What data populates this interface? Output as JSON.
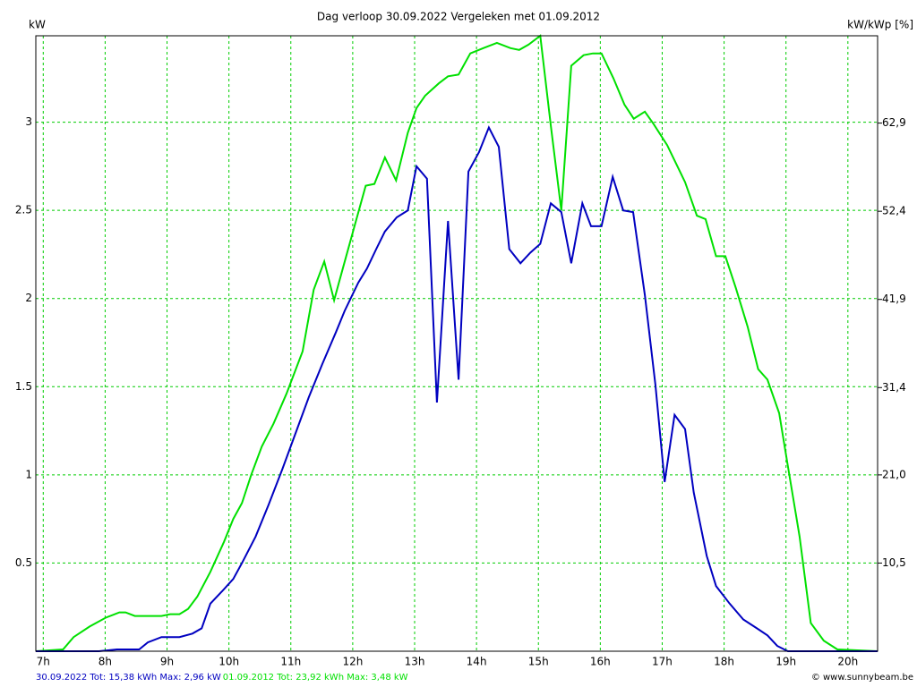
{
  "chart_data": {
    "type": "line",
    "title": "Dag  verloop 30.09.2022   Vergeleken met 01.09.2012",
    "y_label": "kW",
    "y2_label": "kW/kWp [%]",
    "credit": "© www.sunnybeam.be",
    "xlim": [
      6.88,
      20.48
    ],
    "xticks": [
      {
        "value": 7,
        "label": "7h"
      },
      {
        "value": 8,
        "label": "8h"
      },
      {
        "value": 9,
        "label": "9h"
      },
      {
        "value": 10,
        "label": "10h"
      },
      {
        "value": 11,
        "label": "11h"
      },
      {
        "value": 12,
        "label": "12h"
      },
      {
        "value": 13,
        "label": "13h"
      },
      {
        "value": 14,
        "label": "14h"
      },
      {
        "value": 15,
        "label": "15h"
      },
      {
        "value": 16,
        "label": "16h"
      },
      {
        "value": 17,
        "label": "17h"
      },
      {
        "value": 18,
        "label": "18h"
      },
      {
        "value": 19,
        "label": "19h"
      },
      {
        "value": 20,
        "label": "20h"
      }
    ],
    "ylim": [
      0,
      3.49
    ],
    "yticks": [
      0.5,
      1,
      1.5,
      2,
      2.5,
      3
    ],
    "y2lim": [
      0,
      73.3
    ],
    "y2ticks": [
      {
        "value": 10.5,
        "label": "10,5"
      },
      {
        "value": 21,
        "label": "21,0"
      },
      {
        "value": 31.4,
        "label": "31,4"
      },
      {
        "value": 41.9,
        "label": "41,9"
      },
      {
        "value": 52.4,
        "label": "52,4"
      },
      {
        "value": 62.9,
        "label": "62,9"
      }
    ],
    "grid": true,
    "grid_color": "#00cc00",
    "series": [
      {
        "name": "30.09.2022 Tot: 15,38 kWh Max: 2,96 kW",
        "color": "#0000c0",
        "x": [
          6.88,
          7.9,
          8.19,
          8.55,
          8.69,
          8.91,
          9.2,
          9.41,
          9.56,
          9.7,
          9.89,
          10.07,
          10.21,
          10.43,
          10.64,
          10.86,
          11.08,
          11.29,
          11.51,
          11.73,
          11.87,
          12.09,
          12.23,
          12.38,
          12.52,
          12.71,
          12.89,
          13.03,
          13.2,
          13.36,
          13.54,
          13.71,
          13.87,
          14.04,
          14.2,
          14.36,
          14.53,
          14.71,
          14.87,
          15.03,
          15.2,
          15.37,
          15.53,
          15.71,
          15.85,
          16.02,
          16.2,
          16.37,
          16.53,
          16.72,
          16.89,
          17.04,
          17.2,
          17.37,
          17.51,
          17.72,
          17.87,
          18.09,
          18.31,
          18.53,
          18.7,
          18.86,
          19.03,
          20.48
        ],
        "values": [
          0,
          0,
          0.01,
          0.01,
          0.05,
          0.08,
          0.08,
          0.1,
          0.13,
          0.27,
          0.34,
          0.41,
          0.5,
          0.65,
          0.83,
          1.03,
          1.24,
          1.44,
          1.63,
          1.81,
          1.93,
          2.09,
          2.17,
          2.28,
          2.38,
          2.46,
          2.5,
          2.75,
          2.68,
          1.41,
          2.44,
          1.54,
          2.72,
          2.83,
          2.97,
          2.86,
          2.28,
          2.2,
          2.26,
          2.31,
          2.54,
          2.49,
          2.2,
          2.54,
          2.41,
          2.41,
          2.69,
          2.5,
          2.49,
          2.02,
          1.51,
          0.96,
          1.34,
          1.26,
          0.9,
          0.54,
          0.37,
          0.27,
          0.18,
          0.13,
          0.09,
          0.03,
          0,
          0
        ]
      },
      {
        "name": "01.09.2012 Tot: 23,92 kWh Max: 3,48 kW",
        "color": "#00e000",
        "x": [
          6.88,
          7.32,
          7.49,
          7.75,
          8.01,
          8.23,
          8.33,
          8.48,
          8.62,
          8.91,
          9.05,
          9.2,
          9.34,
          9.49,
          9.7,
          9.92,
          10.07,
          10.21,
          10.36,
          10.53,
          10.72,
          10.93,
          11.19,
          11.37,
          11.54,
          11.7,
          11.84,
          12.02,
          12.21,
          12.35,
          12.52,
          12.7,
          12.89,
          13.03,
          13.17,
          13.39,
          13.54,
          13.71,
          13.9,
          14.11,
          14.33,
          14.55,
          14.69,
          14.84,
          15.03,
          15.2,
          15.37,
          15.53,
          15.73,
          15.88,
          16.02,
          16.21,
          16.39,
          16.54,
          16.72,
          16.86,
          17.08,
          17.37,
          17.56,
          17.7,
          17.87,
          18.02,
          18.19,
          18.38,
          18.55,
          18.7,
          18.89,
          19.03,
          19.22,
          19.4,
          19.61,
          19.83,
          20.48
        ],
        "values": [
          0,
          0.01,
          0.08,
          0.14,
          0.19,
          0.22,
          0.22,
          0.2,
          0.2,
          0.2,
          0.21,
          0.21,
          0.24,
          0.31,
          0.45,
          0.62,
          0.75,
          0.84,
          1.0,
          1.16,
          1.29,
          1.46,
          1.7,
          2.05,
          2.21,
          1.99,
          2.17,
          2.4,
          2.64,
          2.65,
          2.8,
          2.67,
          2.94,
          3.08,
          3.15,
          3.22,
          3.26,
          3.27,
          3.39,
          3.42,
          3.45,
          3.42,
          3.41,
          3.44,
          3.49,
          2.98,
          2.5,
          3.32,
          3.38,
          3.39,
          3.39,
          3.25,
          3.1,
          3.02,
          3.06,
          2.99,
          2.87,
          2.66,
          2.47,
          2.45,
          2.24,
          2.24,
          2.06,
          1.84,
          1.6,
          1.54,
          1.35,
          1.05,
          0.65,
          0.16,
          0.06,
          0.01,
          0
        ]
      }
    ]
  }
}
